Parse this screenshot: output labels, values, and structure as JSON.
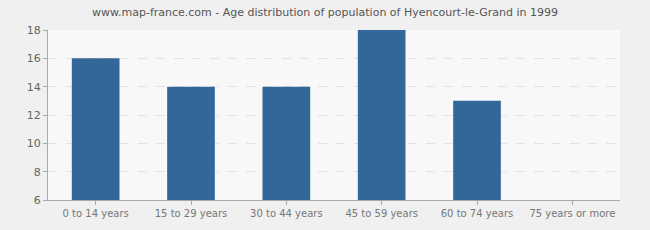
{
  "chart_data": {
    "type": "bar",
    "title": "www.map-france.com - Age distribution of population of Hyencourt-le-Grand in 1999",
    "categories": [
      "0 to 14 years",
      "15 to 29 years",
      "30 to 44 years",
      "45 to 59 years",
      "60 to 74 years",
      "75 years or more"
    ],
    "values": [
      16,
      14,
      14,
      18,
      13,
      6
    ],
    "color": "#336699",
    "ylim": [
      6,
      18
    ],
    "yticks": [
      6,
      8,
      10,
      12,
      14,
      16,
      18
    ],
    "grid": true
  }
}
